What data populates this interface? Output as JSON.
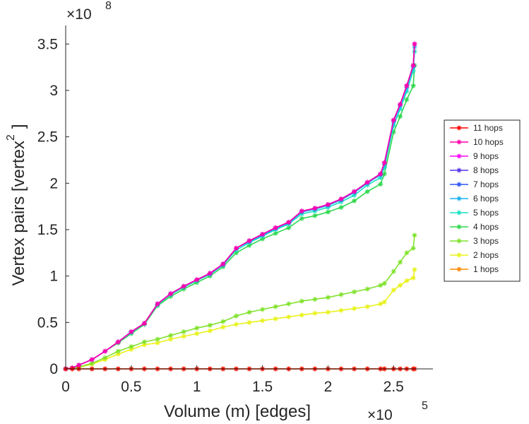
{
  "chart_data": {
    "type": "line",
    "title": "",
    "xlabel": "Volume (m) [edges]",
    "ylabel": "Vertex pairs [vertex",
    "ylabel_superscript": "2",
    "ylabel_close": "]",
    "x_multiplier": "×10",
    "x_multiplier_exp": "5",
    "y_multiplier": "×10",
    "y_multiplier_exp": "8",
    "xlim": [
      0,
      2.8
    ],
    "ylim": [
      0,
      3.7
    ],
    "x_ticks": [
      0,
      0.5,
      1,
      1.5,
      2,
      2.5
    ],
    "x_tick_labels": [
      "0",
      "0.5",
      "1",
      "1.5",
      "2",
      "2.5"
    ],
    "y_ticks": [
      0,
      0.5,
      1,
      1.5,
      2,
      2.5,
      3,
      3.5
    ],
    "y_tick_labels": [
      "0",
      "0.5",
      "1",
      "1.5",
      "2",
      "2.5",
      "3",
      "3.5"
    ],
    "legend_position": "right",
    "x": [
      0,
      0.05,
      0.1,
      0.2,
      0.3,
      0.4,
      0.5,
      0.6,
      0.7,
      0.8,
      0.9,
      1.0,
      1.1,
      1.2,
      1.3,
      1.4,
      1.5,
      1.6,
      1.7,
      1.8,
      1.9,
      2.0,
      2.1,
      2.2,
      2.3,
      2.4,
      2.43,
      2.5,
      2.55,
      2.6,
      2.65,
      2.66
    ],
    "series": [
      {
        "name": "11 hops",
        "color": "#ff0000",
        "values": [
          0,
          0,
          0,
          0,
          0,
          0,
          0,
          0,
          0,
          0,
          0,
          0,
          0,
          0,
          0,
          0,
          0,
          0,
          0,
          0,
          0,
          0,
          0,
          0,
          0,
          0,
          0,
          0,
          0,
          0,
          0,
          0
        ]
      },
      {
        "name": "10 hops",
        "color": "#ff00aa",
        "values": [
          0,
          0.01,
          0.04,
          0.1,
          0.19,
          0.29,
          0.4,
          0.49,
          0.7,
          0.81,
          0.89,
          0.96,
          1.03,
          1.13,
          1.3,
          1.38,
          1.45,
          1.52,
          1.58,
          1.7,
          1.73,
          1.77,
          1.83,
          1.91,
          2.01,
          2.1,
          2.22,
          2.68,
          2.85,
          3.05,
          3.27,
          3.5
        ]
      },
      {
        "name": "9 hops",
        "color": "#ff00ff",
        "values": [
          0,
          0.01,
          0.04,
          0.1,
          0.19,
          0.29,
          0.4,
          0.49,
          0.7,
          0.81,
          0.89,
          0.96,
          1.03,
          1.13,
          1.3,
          1.38,
          1.45,
          1.52,
          1.58,
          1.7,
          1.73,
          1.77,
          1.83,
          1.91,
          2.01,
          2.1,
          2.22,
          2.68,
          2.85,
          3.05,
          3.27,
          3.5
        ]
      },
      {
        "name": "8 hops",
        "color": "#5533ee",
        "values": [
          0,
          0.01,
          0.04,
          0.1,
          0.19,
          0.29,
          0.4,
          0.49,
          0.7,
          0.81,
          0.89,
          0.96,
          1.03,
          1.13,
          1.3,
          1.38,
          1.45,
          1.52,
          1.58,
          1.7,
          1.73,
          1.77,
          1.83,
          1.91,
          2.01,
          2.1,
          2.22,
          2.68,
          2.85,
          3.05,
          3.27,
          3.5
        ]
      },
      {
        "name": "7 hops",
        "color": "#2b57f5",
        "values": [
          0,
          0.01,
          0.04,
          0.1,
          0.19,
          0.29,
          0.4,
          0.49,
          0.7,
          0.81,
          0.89,
          0.96,
          1.03,
          1.13,
          1.3,
          1.38,
          1.45,
          1.52,
          1.58,
          1.7,
          1.73,
          1.77,
          1.83,
          1.91,
          2.01,
          2.1,
          2.22,
          2.68,
          2.85,
          3.05,
          3.27,
          3.5
        ]
      },
      {
        "name": "6 hops",
        "color": "#1ab2f2",
        "values": [
          0,
          0.01,
          0.04,
          0.1,
          0.19,
          0.29,
          0.4,
          0.49,
          0.7,
          0.81,
          0.89,
          0.96,
          1.02,
          1.12,
          1.3,
          1.37,
          1.44,
          1.51,
          1.57,
          1.69,
          1.72,
          1.76,
          1.82,
          1.9,
          2.0,
          2.09,
          2.2,
          2.66,
          2.83,
          3.03,
          3.25,
          3.47
        ]
      },
      {
        "name": "5 hops",
        "color": "#1ae0c3",
        "values": [
          0,
          0.01,
          0.04,
          0.1,
          0.19,
          0.29,
          0.39,
          0.49,
          0.69,
          0.8,
          0.88,
          0.95,
          1.02,
          1.12,
          1.28,
          1.36,
          1.43,
          1.5,
          1.56,
          1.67,
          1.7,
          1.74,
          1.8,
          1.87,
          1.98,
          2.06,
          2.17,
          2.62,
          2.8,
          2.99,
          3.21,
          3.42
        ]
      },
      {
        "name": "4 hops",
        "color": "#2fd84f",
        "values": [
          0,
          0.01,
          0.04,
          0.1,
          0.19,
          0.28,
          0.38,
          0.48,
          0.68,
          0.78,
          0.86,
          0.93,
          1.0,
          1.1,
          1.25,
          1.33,
          1.4,
          1.46,
          1.52,
          1.62,
          1.65,
          1.69,
          1.74,
          1.81,
          1.91,
          1.99,
          2.1,
          2.55,
          2.72,
          2.9,
          3.05,
          3.27
        ]
      },
      {
        "name": "3 hops",
        "color": "#7fe22b",
        "values": [
          0,
          0.005,
          0.02,
          0.06,
          0.12,
          0.19,
          0.24,
          0.29,
          0.32,
          0.36,
          0.4,
          0.44,
          0.47,
          0.51,
          0.57,
          0.61,
          0.64,
          0.67,
          0.7,
          0.73,
          0.75,
          0.77,
          0.8,
          0.83,
          0.86,
          0.9,
          0.92,
          1.05,
          1.15,
          1.25,
          1.3,
          1.44
        ]
      },
      {
        "name": "2 hops",
        "color": "#e8f21a",
        "values": [
          0,
          0.004,
          0.015,
          0.05,
          0.1,
          0.16,
          0.21,
          0.26,
          0.28,
          0.32,
          0.35,
          0.38,
          0.41,
          0.45,
          0.48,
          0.5,
          0.52,
          0.54,
          0.56,
          0.58,
          0.6,
          0.61,
          0.63,
          0.65,
          0.67,
          0.7,
          0.72,
          0.85,
          0.9,
          0.95,
          0.98,
          1.07
        ]
      },
      {
        "name": "1 hops",
        "color": "#ff8800",
        "values": [
          0,
          0,
          0,
          0,
          0,
          0,
          0,
          0,
          0,
          0,
          0,
          0,
          0,
          0,
          0,
          0,
          0,
          0,
          0,
          0,
          0,
          0,
          0,
          0,
          0,
          0,
          0,
          0,
          0,
          0,
          0,
          0
        ]
      }
    ]
  }
}
